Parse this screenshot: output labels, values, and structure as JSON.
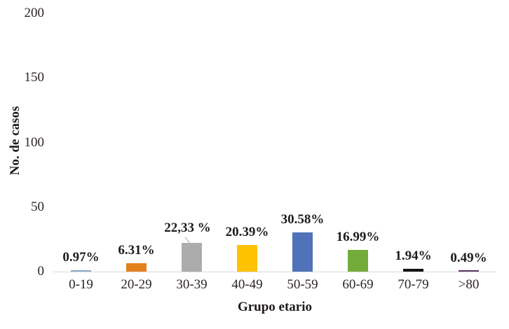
{
  "chart_data": {
    "type": "bar",
    "title": "",
    "xlabel": "Grupo etario",
    "ylabel": "No. de casos",
    "categories": [
      "0-19",
      "20-29",
      "30-39",
      "40-49",
      "50-59",
      "60-69",
      "70-79",
      ">80"
    ],
    "values": [
      0.97,
      6.31,
      22.33,
      20.39,
      30.58,
      16.99,
      1.94,
      0.49
    ],
    "data_labels": [
      "0.97%",
      "6.31%",
      "22,33 %",
      "20.39%",
      "30.58%",
      "16.99%",
      "1.94%",
      "0.49%"
    ],
    "bar_colors": [
      "#8fa9c8",
      "#e5801f",
      "#adacac",
      "#fec201",
      "#4f72b8",
      "#74ac3c",
      "#171112",
      "#593969"
    ],
    "y_ticks": [
      0,
      50,
      100,
      150,
      200
    ],
    "ylim": [
      0,
      200
    ],
    "grid": false,
    "legend": "none",
    "callout": {
      "category": "30-39",
      "has_leader_line": true,
      "leader_color": "#bfbfbf"
    },
    "axis_line_color": "#d8d8d8"
  }
}
